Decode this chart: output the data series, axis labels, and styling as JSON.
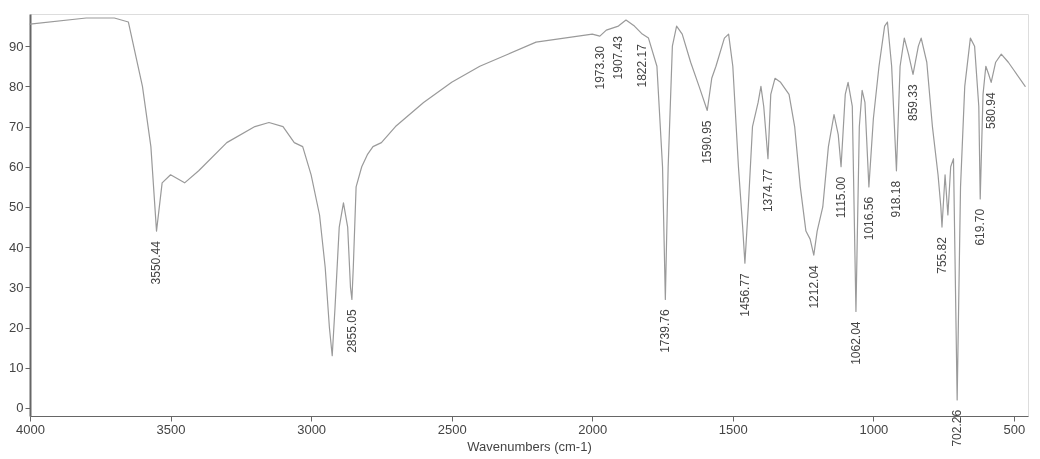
{
  "chart_data": {
    "type": "line",
    "xlabel": "Wavenumbers (cm-1)",
    "xlim": [
      4000,
      450
    ],
    "ylim": [
      -2,
      98
    ],
    "xticks": [
      4000,
      3500,
      3000,
      2500,
      2000,
      1500,
      1000,
      500
    ],
    "yticks": [
      0,
      10,
      20,
      30,
      40,
      50,
      60,
      70,
      80,
      90
    ],
    "grid": false,
    "marker": "none",
    "line_style": "solid",
    "series": [
      {
        "color": "#9a9a9a",
        "x": [
          4000,
          3800,
          3700,
          3650,
          3600,
          3570,
          3550,
          3530,
          3500,
          3450,
          3400,
          3300,
          3200,
          3150,
          3100,
          3060,
          3030,
          3000,
          2970,
          2950,
          2935,
          2925,
          2915,
          2900,
          2885,
          2870,
          2860,
          2855,
          2850,
          2840,
          2820,
          2800,
          2780,
          2750,
          2700,
          2600,
          2500,
          2400,
          2300,
          2200,
          2100,
          2000,
          1973,
          1950,
          1907,
          1880,
          1850,
          1822,
          1800,
          1770,
          1750,
          1740,
          1730,
          1715,
          1700,
          1680,
          1650,
          1620,
          1591,
          1575,
          1560,
          1530,
          1515,
          1500,
          1480,
          1465,
          1457,
          1445,
          1430,
          1410,
          1400,
          1390,
          1375,
          1365,
          1350,
          1330,
          1300,
          1280,
          1260,
          1240,
          1225,
          1212,
          1200,
          1180,
          1160,
          1140,
          1125,
          1115,
          1100,
          1090,
          1075,
          1062,
          1050,
          1040,
          1030,
          1016,
          1000,
          980,
          960,
          950,
          935,
          918,
          905,
          890,
          875,
          859,
          840,
          830,
          810,
          790,
          770,
          760,
          756,
          745,
          735,
          725,
          715,
          702,
          690,
          675,
          655,
          640,
          625,
          620,
          610,
          600,
          590,
          581,
          565,
          545,
          520,
          500,
          460
        ],
        "values": [
          95.5,
          97,
          97,
          96,
          80,
          65,
          44,
          56,
          58,
          56,
          59,
          66,
          70,
          71,
          70,
          66,
          65,
          58,
          48,
          35,
          20,
          13,
          25,
          45,
          51,
          45,
          30,
          27,
          35,
          55,
          60,
          63,
          65,
          66,
          70,
          76,
          81,
          85,
          88,
          91,
          92,
          93,
          92.5,
          94,
          95,
          96.5,
          95,
          93,
          92,
          85,
          60,
          27,
          60,
          90,
          95,
          93,
          86,
          80,
          74,
          82,
          85,
          92,
          93,
          85,
          60,
          45,
          36,
          50,
          70,
          76,
          80,
          75,
          62,
          78,
          82,
          81,
          78,
          70,
          55,
          44,
          42,
          38,
          44,
          50,
          65,
          73,
          68,
          60,
          78,
          81,
          75,
          24,
          70,
          79,
          76,
          55,
          72,
          85,
          95,
          96,
          85,
          59,
          85,
          92,
          88,
          83,
          90,
          92,
          86,
          70,
          58,
          50,
          45,
          58,
          48,
          60,
          62,
          2,
          55,
          80,
          92,
          90,
          75,
          52,
          78,
          85,
          83,
          81,
          86,
          88,
          86,
          84,
          80
        ]
      }
    ],
    "annotations": [
      {
        "text": "3550.44",
        "x": 3550.44,
        "y": 44
      },
      {
        "text": "2855.05",
        "x": 2855.05,
        "y": 27
      },
      {
        "text": "1973.30",
        "x": 1973.3,
        "y": 92.5
      },
      {
        "text": "1907.43",
        "x": 1907.43,
        "y": 95
      },
      {
        "text": "1822.17",
        "x": 1822.17,
        "y": 93
      },
      {
        "text": "1739.76",
        "x": 1739.76,
        "y": 27
      },
      {
        "text": "1590.95",
        "x": 1590.95,
        "y": 74
      },
      {
        "text": "1456.77",
        "x": 1456.77,
        "y": 36
      },
      {
        "text": "1374.77",
        "x": 1374.77,
        "y": 62
      },
      {
        "text": "1212.04",
        "x": 1212.04,
        "y": 38
      },
      {
        "text": "1115.00",
        "x": 1115.0,
        "y": 60
      },
      {
        "text": "1062.04",
        "x": 1062.04,
        "y": 24
      },
      {
        "text": "1016.56",
        "x": 1016.56,
        "y": 55
      },
      {
        "text": "918.18",
        "x": 918.18,
        "y": 59
      },
      {
        "text": "859.33",
        "x": 859.33,
        "y": 83
      },
      {
        "text": "755.82",
        "x": 755.82,
        "y": 45
      },
      {
        "text": "702.26",
        "x": 702.26,
        "y": 2
      },
      {
        "text": "619.70",
        "x": 619.7,
        "y": 52
      },
      {
        "text": "580.94",
        "x": 580.94,
        "y": 81
      }
    ]
  }
}
